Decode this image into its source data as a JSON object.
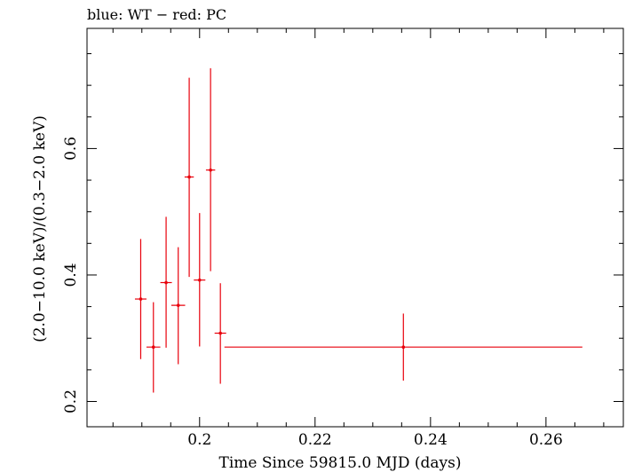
{
  "chart_data": {
    "type": "scatter",
    "title": "blue: WT − red: PC",
    "xlabel": "Time Since 59815.0 MJD (days)",
    "ylabel": "(2.0−10.0 keV)/(0.3−2.0 keV)",
    "xlim": [
      0.1805,
      0.2734
    ],
    "ylim": [
      0.16,
      0.79
    ],
    "x_ticks": [
      0.2,
      0.22,
      0.24,
      0.26
    ],
    "x_tick_labels": [
      "0.2",
      "0.22",
      "0.24",
      "0.26"
    ],
    "y_ticks": [
      0.2,
      0.4,
      0.6
    ],
    "y_tick_labels": [
      "0.2",
      "0.4",
      "0.6"
    ],
    "grid": false,
    "series": [
      {
        "color": "#e8000b",
        "points": [
          {
            "x": 0.1898,
            "xerr_lo": 0.001,
            "xerr_hi": 0.001,
            "y": 0.362,
            "ylo": 0.267,
            "yhi": 0.457
          },
          {
            "x": 0.192,
            "xerr_lo": 0.0012,
            "xerr_hi": 0.0012,
            "y": 0.286,
            "ylo": 0.214,
            "yhi": 0.357
          },
          {
            "x": 0.1942,
            "xerr_lo": 0.001,
            "xerr_hi": 0.001,
            "y": 0.388,
            "ylo": 0.285,
            "yhi": 0.492
          },
          {
            "x": 0.1963,
            "xerr_lo": 0.0012,
            "xerr_hi": 0.0012,
            "y": 0.352,
            "ylo": 0.259,
            "yhi": 0.444
          },
          {
            "x": 0.1982,
            "xerr_lo": 0.0008,
            "xerr_hi": 0.0008,
            "y": 0.555,
            "ylo": 0.397,
            "yhi": 0.712
          },
          {
            "x": 0.2,
            "xerr_lo": 0.001,
            "xerr_hi": 0.001,
            "y": 0.392,
            "ylo": 0.287,
            "yhi": 0.498
          },
          {
            "x": 0.2019,
            "xerr_lo": 0.0008,
            "xerr_hi": 0.0008,
            "y": 0.566,
            "ylo": 0.406,
            "yhi": 0.727
          },
          {
            "x": 0.2036,
            "xerr_lo": 0.001,
            "xerr_hi": 0.001,
            "y": 0.308,
            "ylo": 0.228,
            "yhi": 0.387
          },
          {
            "x": 0.2353,
            "xerr_lo": 0.031,
            "xerr_hi": 0.031,
            "y": 0.286,
            "ylo": 0.233,
            "yhi": 0.339
          }
        ]
      }
    ]
  }
}
